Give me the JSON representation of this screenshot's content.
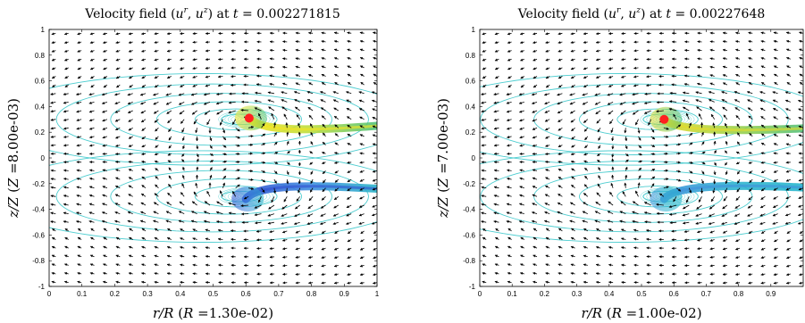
{
  "chart_data": [
    {
      "type": "quiver",
      "title": "Velocity field (u^r, u^z) at t = 0.002271815",
      "title_parts": {
        "prefix": "Velocity field (",
        "u": "u",
        "r": "r",
        "sep": ", ",
        "z": "z",
        "mid": ") at ",
        "t": "t",
        "eq": " = ",
        "time": "0.002271815"
      },
      "xlabel": "r/R (R =1.30e-02)",
      "xlabel_parts": {
        "var": "r/R",
        "open": " (",
        "sym": "R",
        "eq": " =",
        "value": "1.30e-02",
        "close": ")"
      },
      "ylabel": "z/Z (Z =8.00e-03)",
      "ylabel_parts": {
        "var": "z/Z",
        "open": " (",
        "sym": "Z",
        "eq": " =",
        "value": "8.00e-03",
        "close": ")"
      },
      "xlim": [
        0,
        1
      ],
      "ylim": [
        -1,
        1
      ],
      "xticks": [
        "0",
        "0.1",
        "0.2",
        "0.3",
        "0.4",
        "0.5",
        "0.6",
        "0.7",
        "0.8",
        "0.9",
        "1"
      ],
      "yticks": [
        "-1",
        "-0.8",
        "-0.6",
        "-0.4",
        "-0.2",
        "0",
        "0.2",
        "0.4",
        "0.6",
        "0.8",
        "1"
      ],
      "marker": {
        "x": 0.61,
        "y": 0.31,
        "color": "#ff2020"
      },
      "vortex_centers": [
        {
          "x": 0.6,
          "y": 0.3
        },
        {
          "x": 0.6,
          "y": -0.3
        }
      ],
      "tails": [
        {
          "points": [
            [
              0.61,
              0.31
            ],
            [
              0.64,
              0.22
            ],
            [
              0.75,
              0.2
            ],
            [
              1.0,
              0.25
            ]
          ],
          "colors": [
            "#f5e51f",
            "#b9dc3f",
            "#4fc27a"
          ]
        },
        {
          "points": [
            [
              0.6,
              -0.32
            ],
            [
              0.63,
              -0.22
            ],
            [
              0.75,
              -0.2
            ],
            [
              1.0,
              -0.24
            ]
          ],
          "colors": [
            "#2f4fd0",
            "#3f8fe0",
            "#2bb4c8"
          ]
        }
      ],
      "streamline_color": "#2ec4c8",
      "arrow_color": "#000000",
      "grid": false
    },
    {
      "type": "quiver",
      "title": "Velocity field (u^r, u^z) at t = 0.00227648",
      "title_parts": {
        "prefix": "Velocity field (",
        "u": "u",
        "r": "r",
        "sep": ", ",
        "z": "z",
        "mid": ") at ",
        "t": "t",
        "eq": " = ",
        "time": "0.00227648"
      },
      "xlabel": "r/R (R =1.00e-02)",
      "xlabel_parts": {
        "var": "r/R",
        "open": " (",
        "sym": "R",
        "eq": " =",
        "value": "1.00e-02",
        "close": ")"
      },
      "ylabel": "z/Z (Z =7.00e-03)",
      "ylabel_parts": {
        "var": "z/Z",
        "open": " (",
        "sym": "Z",
        "eq": " =",
        "value": "7.00e-03",
        "close": ")"
      },
      "xlim": [
        0,
        1
      ],
      "ylim": [
        -1,
        1
      ],
      "xticks": [
        "0",
        "0.1",
        "0.2",
        "0.3",
        "0.4",
        "0.5",
        "0.6",
        "0.7",
        "0.8",
        "0.9"
      ],
      "yticks": [
        "-1",
        "-0.8",
        "-0.6",
        "-0.4",
        "-0.2",
        "0",
        "0.2",
        "0.4",
        "0.6",
        "0.8",
        "1"
      ],
      "marker": {
        "x": 0.57,
        "y": 0.3,
        "color": "#ff2020"
      },
      "vortex_centers": [
        {
          "x": 0.58,
          "y": 0.3
        },
        {
          "x": 0.58,
          "y": -0.3
        }
      ],
      "tails": [
        {
          "points": [
            [
              0.57,
              0.3
            ],
            [
              0.6,
              0.22
            ],
            [
              0.75,
              0.2
            ],
            [
              1.0,
              0.23
            ]
          ],
          "colors": [
            "#e6dc2a",
            "#9fd24a",
            "#55c07a"
          ]
        },
        {
          "points": [
            [
              0.57,
              -0.32
            ],
            [
              0.6,
              -0.22
            ],
            [
              0.75,
              -0.2
            ],
            [
              1.0,
              -0.23
            ]
          ],
          "colors": [
            "#3f90dc",
            "#2fb4cf",
            "#26b6cc"
          ]
        }
      ],
      "streamline_color": "#2ec4c8",
      "arrow_color": "#000000",
      "grid": false
    }
  ]
}
